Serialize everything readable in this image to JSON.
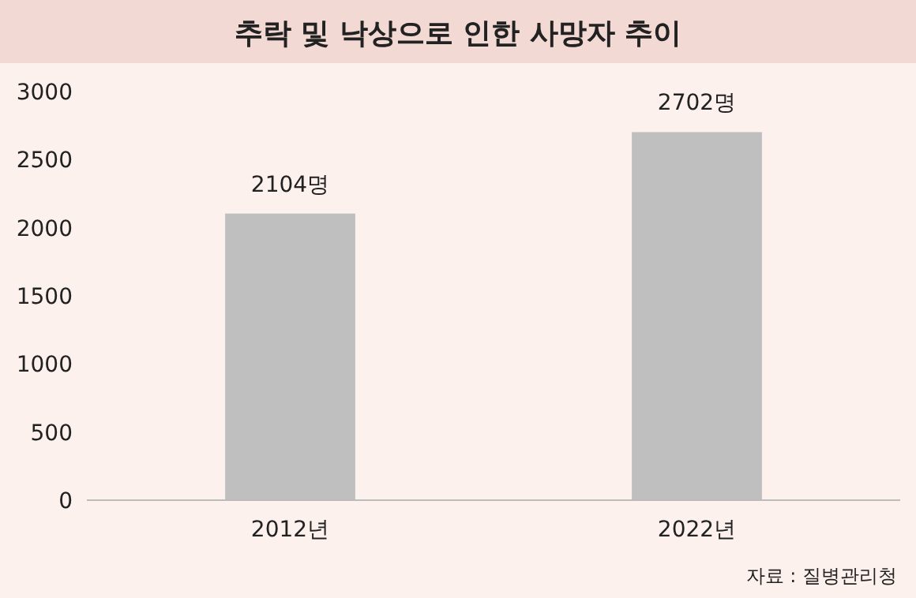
{
  "chart_data": {
    "type": "bar",
    "title": "추락 및 낙상으로 인한 사망자 추이",
    "categories": [
      "2012년",
      "2022년"
    ],
    "values": [
      2104,
      2702
    ],
    "color": "#bfbfbf",
    "value_labels": [
      "2104명",
      "2702명"
    ],
    "ylim": [
      0,
      3000
    ],
    "yticks": [
      0,
      500,
      1000,
      1500,
      2000,
      2500,
      3000
    ],
    "grid": false,
    "annotations": [
      "자료 : 질병관리청"
    ]
  }
}
